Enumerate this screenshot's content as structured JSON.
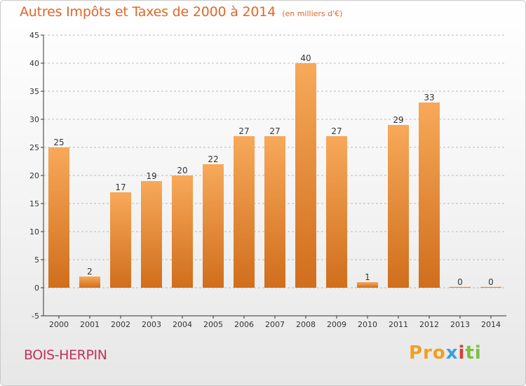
{
  "title": "Autres Impôts et Taxes de 2000 à 2014",
  "subtitle": "(en milliers d'€)",
  "place": "BOIS-HERPIN",
  "logo": {
    "parts": [
      "Pro",
      "x",
      "i",
      "ti"
    ]
  },
  "colors": {
    "bar_light": "#f7a95a",
    "bar_dark": "#d06e1c",
    "title": "#e0662a",
    "place": "#c4305a",
    "axis": "#333333",
    "grid": "#bbbbbb"
  },
  "chart_data": {
    "type": "bar",
    "categories": [
      "2000",
      "2001",
      "2002",
      "2003",
      "2004",
      "2005",
      "2006",
      "2007",
      "2008",
      "2009",
      "2010",
      "2011",
      "2012",
      "2013",
      "2014"
    ],
    "values": [
      25,
      2,
      17,
      19,
      20,
      22,
      27,
      27,
      40,
      27,
      1,
      29,
      33,
      0,
      0
    ],
    "data_labels": [
      "25",
      "2",
      "17",
      "19",
      "20",
      "22",
      "27",
      "27",
      "40",
      "27",
      "1",
      "29",
      "33",
      "0",
      "0"
    ],
    "ylim": [
      -5,
      45
    ],
    "yticks": [
      -5,
      0,
      5,
      10,
      15,
      20,
      25,
      30,
      35,
      40,
      45
    ],
    "grid": "horizontal-dashed",
    "legend": "none"
  }
}
